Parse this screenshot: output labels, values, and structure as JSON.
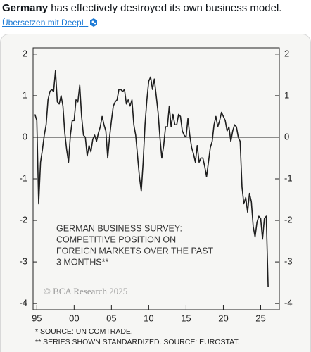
{
  "tweet": {
    "text_bold": "Germany",
    "text_rest": " has effectively destroyed its own business model.",
    "translate_link": "Übersetzen mit DeepL"
  },
  "chart_data": {
    "type": "line",
    "annotation_lines": [
      "GERMAN BUSINESS SURVEY:",
      "COMPETITIVE POSITION ON",
      "FOREIGN MARKETS OVER THE PAST",
      "3 MONTHS**"
    ],
    "credit": "© BCΑ Research 2025",
    "footnotes": [
      "*  SOURCE: UN COMTRADE.",
      "** SERIES SHOWN STANDARDIZED. SOURCE: EUROSTAT."
    ],
    "color": "#1e1e1e",
    "x": [
      1994.75,
      1995,
      1995.25,
      1995.5,
      1995.75,
      1996,
      1996.25,
      1996.5,
      1996.75,
      1997,
      1997.25,
      1997.5,
      1997.75,
      1998,
      1998.25,
      1998.5,
      1998.75,
      1999,
      1999.25,
      1999.5,
      1999.75,
      2000,
      2000.25,
      2000.5,
      2000.75,
      2001,
      2001.25,
      2001.5,
      2001.75,
      2002,
      2002.25,
      2002.5,
      2002.75,
      2003,
      2003.25,
      2003.5,
      2003.75,
      2004,
      2004.25,
      2004.5,
      2004.75,
      2005,
      2005.25,
      2005.5,
      2005.75,
      2006,
      2006.25,
      2006.5,
      2006.75,
      2007,
      2007.25,
      2007.5,
      2007.75,
      2008,
      2008.25,
      2008.5,
      2008.75,
      2009,
      2009.25,
      2009.5,
      2009.75,
      2010,
      2010.25,
      2010.5,
      2010.75,
      2011,
      2011.25,
      2011.5,
      2011.75,
      2012,
      2012.25,
      2012.5,
      2012.75,
      2013,
      2013.25,
      2013.5,
      2013.75,
      2014,
      2014.25,
      2014.5,
      2014.75,
      2015,
      2015.25,
      2015.5,
      2015.75,
      2016,
      2016.25,
      2016.5,
      2016.75,
      2017,
      2017.25,
      2017.5,
      2017.75,
      2018,
      2018.25,
      2018.5,
      2018.75,
      2019,
      2019.25,
      2019.5,
      2019.75,
      2020,
      2020.25,
      2020.5,
      2020.75,
      2021,
      2021.25,
      2021.5,
      2021.75,
      2022,
      2022.25,
      2022.5,
      2022.75,
      2023,
      2023.25,
      2023.5,
      2023.75,
      2024,
      2024.25,
      2024.5,
      2024.75,
      2025,
      2025.25,
      2025.5,
      2025.75,
      2026
    ],
    "values": [
      0.55,
      0.4,
      -1.6,
      -0.6,
      -0.3,
      0.05,
      0.3,
      0.9,
      1.1,
      1.15,
      1.1,
      1.6,
      0.85,
      0.8,
      1.0,
      0.75,
      0.1,
      -0.3,
      -0.6,
      0.05,
      0.4,
      0.4,
      0.9,
      0.85,
      1.25,
      0.5,
      0.05,
      0,
      -0.45,
      -0.2,
      -0.35,
      -0.05,
      0.05,
      -0.1,
      0.1,
      0.25,
      0.5,
      0.3,
      0.15,
      -0.5,
      0,
      0.4,
      0.75,
      0.85,
      0.9,
      1.15,
      1.15,
      1.1,
      1.15,
      0.8,
      0.9,
      0.75,
      0.9,
      0.3,
      0.05,
      -0.45,
      -0.95,
      -1.3,
      -0.6,
      0.3,
      0.9,
      1.35,
      1.45,
      1.15,
      1.4,
      1.0,
      0.6,
      0,
      -0.5,
      -0.2,
      0.25,
      0.25,
      0.75,
      0.25,
      0.55,
      0.3,
      0.3,
      0.55,
      0.5,
      0.15,
      0.05,
      0,
      0.45,
      0.05,
      -0.25,
      -0.4,
      -0.6,
      -0.2,
      -0.6,
      -0.5,
      -0.5,
      -0.7,
      -0.95,
      -0.6,
      -0.25,
      -0.1,
      0.3,
      0.5,
      0.25,
      0.4,
      0.6,
      0.5,
      0.4,
      0.15,
      0.25,
      -0.1,
      0.15,
      0.3,
      0.25,
      0,
      -0.1,
      -1.2,
      -1.6,
      -1.45,
      -1.8,
      -1.35,
      -1.55,
      -2.15,
      -2.4,
      -2.05,
      -1.9,
      -1.95,
      -2.45,
      -1.95,
      -1.9,
      -3.6
    ],
    "xlim": [
      1994.5,
      2027.5
    ],
    "xticks": [
      {
        "value": 1995,
        "label": "95"
      },
      {
        "value": 2000,
        "label": "00"
      },
      {
        "value": 2005,
        "label": "05"
      },
      {
        "value": 2010,
        "label": "10"
      },
      {
        "value": 2015,
        "label": "15"
      },
      {
        "value": 2020,
        "label": "20"
      },
      {
        "value": 2025,
        "label": "25"
      }
    ],
    "ylim": [
      -4.15,
      2.15
    ],
    "yticks": [
      2,
      1,
      0,
      -1,
      -2,
      -3,
      -4
    ],
    "right_axis": true
  }
}
